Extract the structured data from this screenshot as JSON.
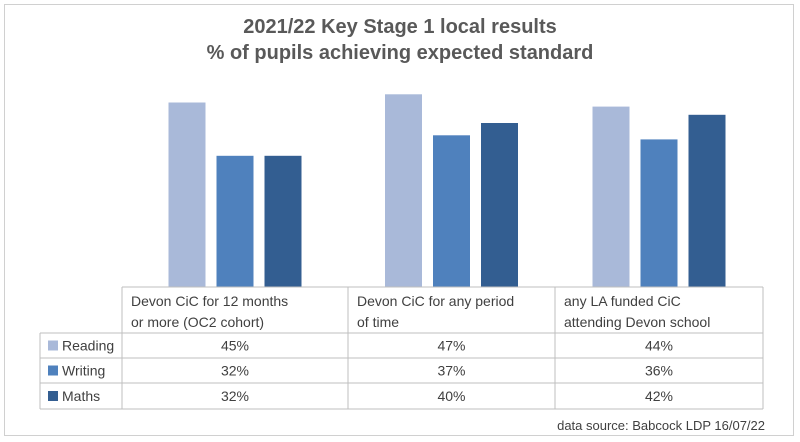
{
  "chart_data": {
    "type": "bar",
    "title": "2021/22 Key Stage 1 local results",
    "subtitle": "% of pupils achieving expected standard",
    "categories": [
      [
        "Devon CiC for 12 months",
        "or more (OC2 cohort)"
      ],
      [
        "Devon CiC for any period",
        "of time"
      ],
      [
        "any LA funded CiC",
        "attending Devon school"
      ]
    ],
    "series": [
      {
        "name": "Reading",
        "values": [
          45,
          47,
          44
        ],
        "labels": [
          "45%",
          "47%",
          "44%"
        ],
        "color": "#a9b9d9"
      },
      {
        "name": "Writing",
        "values": [
          32,
          37,
          36
        ],
        "labels": [
          "32%",
          "37%",
          "36%"
        ],
        "color": "#4f81bd"
      },
      {
        "name": "Maths",
        "values": [
          32,
          40,
          42
        ],
        "labels": [
          "32%",
          "40%",
          "42%"
        ],
        "color": "#335e91"
      }
    ],
    "legend": "data table",
    "source": "data source: Babcock LDP 16/07/22"
  }
}
